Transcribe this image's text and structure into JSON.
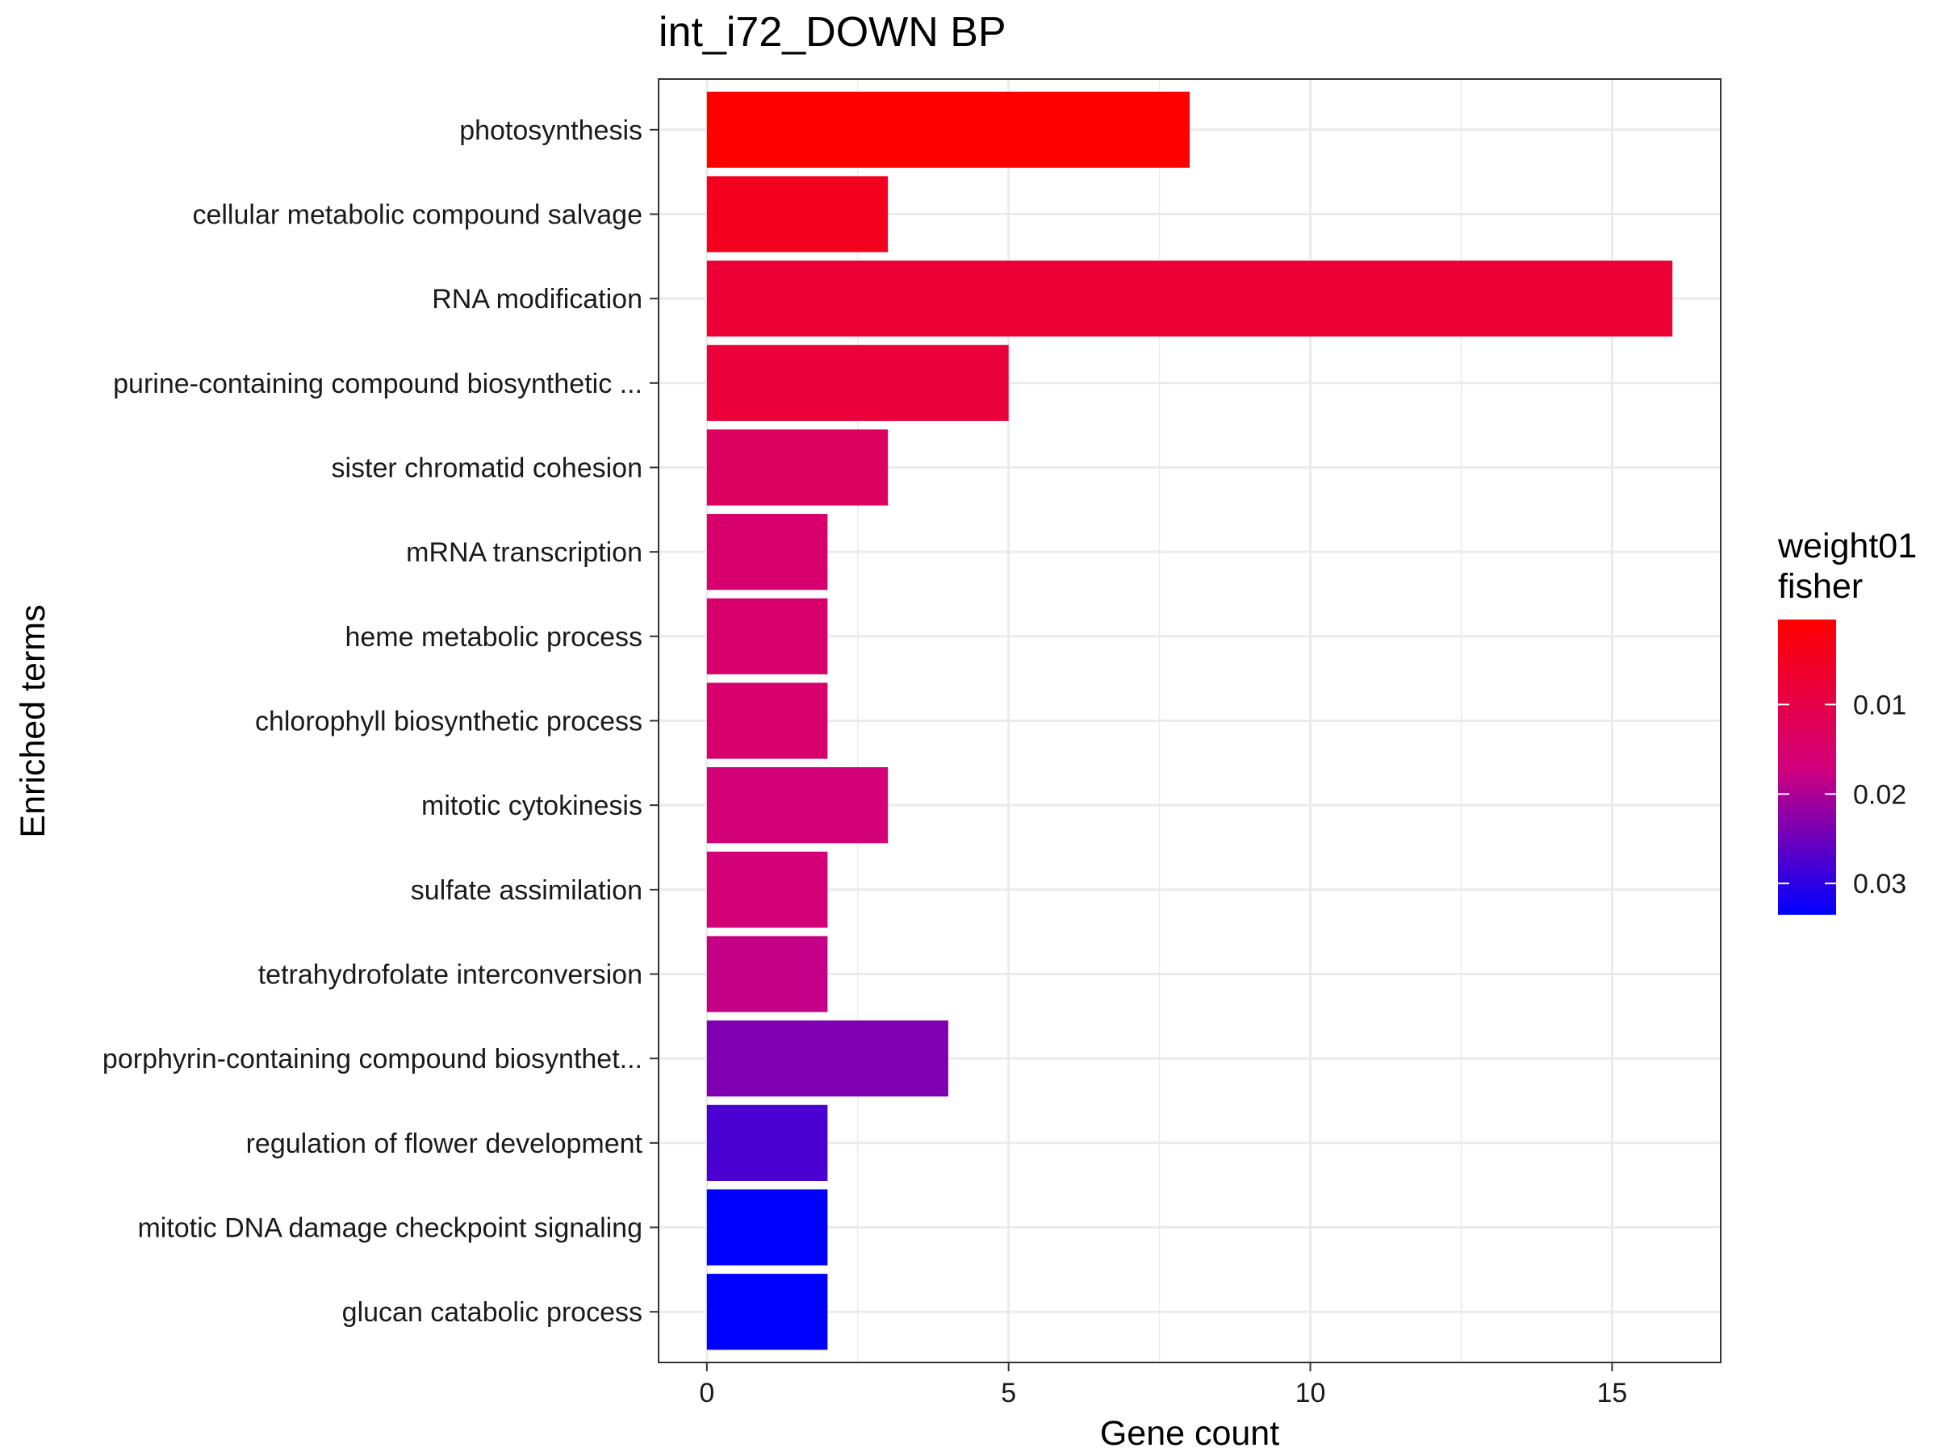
{
  "chart_data": {
    "type": "bar",
    "orientation": "horizontal",
    "title": "int_i72_DOWN BP",
    "xlabel": "Gene count",
    "ylabel": "Enriched terms",
    "xlim": [
      -0.8,
      16.8
    ],
    "xticks": [
      0,
      5,
      10,
      15
    ],
    "grid": true,
    "legend": {
      "title_lines": [
        "weight01",
        "fisher"
      ],
      "placement": "right",
      "range": [
        0.0005,
        0.0335
      ],
      "ticks": [
        {
          "value": 0.01,
          "label": "0.01"
        },
        {
          "value": 0.02,
          "label": "0.02"
        },
        {
          "value": 0.03,
          "label": "0.03"
        }
      ],
      "low_color": "#ff0000",
      "high_color": "#0000ff"
    },
    "categories": [
      "photosynthesis",
      "cellular metabolic compound salvage",
      "RNA modification",
      "purine-containing compound biosynthetic ...",
      "sister chromatid cohesion",
      "mRNA transcription",
      "heme metabolic process",
      "chlorophyll biosynthetic process",
      "mitotic cytokinesis",
      "sulfate assimilation",
      "tetrahydrofolate interconversion",
      "porphyrin-containing compound biosynthet...",
      "regulation of flower development",
      "mitotic DNA damage checkpoint signaling",
      "glucan catabolic process"
    ],
    "values": [
      8,
      3,
      16,
      5,
      3,
      2,
      2,
      2,
      3,
      2,
      2,
      4,
      2,
      2,
      2
    ],
    "pvalues": [
      0.0005,
      0.0046,
      0.0076,
      0.0083,
      0.0132,
      0.015,
      0.015,
      0.015,
      0.0163,
      0.0163,
      0.0182,
      0.0236,
      0.0277,
      0.0335,
      0.0335
    ]
  }
}
